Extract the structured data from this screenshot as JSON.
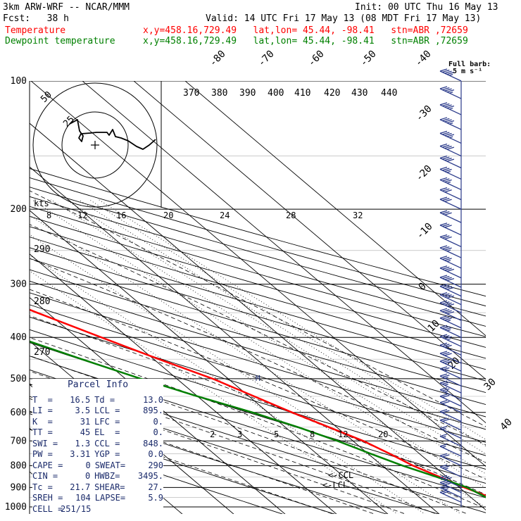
{
  "header": {
    "model": "3km ARW-WRF -- NCAR/MMM",
    "init": "Init: 00 UTC Thu 16 May 13",
    "fcst": "Fcst:   38 h",
    "valid": "Valid: 14 UTC Fri 17 May 13 (08 MDT Fri 17 May 13)",
    "temp_label": "Temperature",
    "temp_loc": "x,y=458.16,729.49   lat,lon= 45.44, -98.41   stn=ABR ,72659",
    "dew_label": "Dewpoint temperature",
    "dew_loc": "x,y=458.16,729.49   lat,lon= 45.44, -98.41   stn=ABR ,72659",
    "temp_color": "#ff0000",
    "dew_color": "#008000"
  },
  "barb_legend": {
    "line1": "Full barb:",
    "line2": "5 m s⁻¹"
  },
  "parcel": {
    "title": "Parcel Info",
    "rows": [
      [
        "T  =",
        "16.5",
        "Td =",
        "13.0"
      ],
      [
        "LI =",
        "3.5",
        "LCL =",
        "895."
      ],
      [
        "K  =",
        "31",
        "LFC =",
        "0."
      ],
      [
        "TT =",
        "45",
        "EL  =",
        "0."
      ],
      [
        "SWI =",
        "1.3",
        "CCL =",
        "848."
      ],
      [
        "PW =",
        "3.31",
        "YGP =",
        "0.0"
      ],
      [
        "CAPE =",
        "0",
        "SWEAT=",
        "290"
      ],
      [
        "CIN =",
        "0",
        "HWBZ=",
        "3495."
      ],
      [
        "Tc =",
        "21.7",
        "SHEAR=",
        "27."
      ],
      [
        "SREH =",
        "104",
        "LAPSE=",
        "5.9"
      ],
      [
        "CELL =",
        "251/15",
        "",
        ""
      ]
    ]
  },
  "hodograph": {
    "kts_label": "kts",
    "ring_labels": [
      "50",
      "25"
    ]
  },
  "annotations": {
    "ccl": "<-CCL",
    "lcl": "<-LCL",
    "m_marker": "M"
  },
  "chart_data": {
    "type": "line",
    "title": "",
    "pressure_levels": [
      100,
      200,
      300,
      400,
      500,
      600,
      700,
      800,
      900,
      1000
    ],
    "isotherm_labels": [
      "-80",
      "-70",
      "-60",
      "-50",
      "-40",
      "-30",
      "-20",
      "-10",
      "0",
      "10",
      "20",
      "30",
      "40"
    ],
    "theta_labels": [
      "370",
      "380",
      "390",
      "400",
      "410",
      "420",
      "430",
      "440"
    ],
    "theta_e_labels": [
      "290",
      "280",
      "270"
    ],
    "mixing_ratio_labels_upper": [
      "8",
      "12",
      "16",
      "20",
      "24",
      "28",
      "32"
    ],
    "mixing_ratio_labels_lower": [
      "2",
      "3",
      "5",
      "8",
      "12",
      "20"
    ],
    "series": [
      {
        "name": "Temperature",
        "pressure": [
          995,
          975,
          950,
          900,
          850,
          800,
          750,
          700,
          650,
          600,
          550,
          500,
          450,
          400,
          350,
          300,
          250,
          200,
          180,
          150,
          130,
          110,
          100
        ],
        "temperature": [
          16.5,
          14.6,
          13.8,
          11.0,
          8.6,
          6.0,
          4.2,
          2.0,
          -1.5,
          -5.3,
          -9.0,
          -13.0,
          -19.0,
          -25.2,
          -32.0,
          -39.5,
          -47.5,
          -55.5,
          -59.0,
          -60.0,
          -61.0,
          -60.0,
          -59.0
        ]
      },
      {
        "name": "Dewpoint temperature",
        "pressure": [
          975,
          950,
          900,
          850,
          800,
          750,
          700,
          650,
          600,
          550,
          500,
          450,
          400,
          350,
          300,
          250,
          200,
          180,
          150,
          130,
          110,
          100
        ],
        "temperature": [
          12.3,
          13.0,
          11.5,
          8.0,
          4.0,
          0.5,
          -3.0,
          -7.5,
          -13.0,
          -20.0,
          -27.0,
          -34.0,
          -41.5,
          -47.5,
          -54.5,
          -62.0,
          -71.0,
          -73.0,
          -71.0,
          -71.0,
          -72.0,
          -72.5
        ]
      }
    ],
    "wind_barbs": [
      {
        "p": 100,
        "kt": 45
      },
      {
        "p": 110,
        "kt": 45
      },
      {
        "p": 120,
        "kt": 45
      },
      {
        "p": 130,
        "kt": 45
      },
      {
        "p": 140,
        "kt": 45
      },
      {
        "p": 150,
        "kt": 40
      },
      {
        "p": 160,
        "kt": 40
      },
      {
        "p": 170,
        "kt": 35
      },
      {
        "p": 180,
        "kt": 35
      },
      {
        "p": 190,
        "kt": 30
      },
      {
        "p": 200,
        "kt": 30
      },
      {
        "p": 215,
        "kt": 30
      },
      {
        "p": 230,
        "kt": 30
      },
      {
        "p": 245,
        "kt": 30
      },
      {
        "p": 260,
        "kt": 35
      },
      {
        "p": 275,
        "kt": 35
      },
      {
        "p": 290,
        "kt": 40
      },
      {
        "p": 305,
        "kt": 40
      },
      {
        "p": 320,
        "kt": 40
      },
      {
        "p": 335,
        "kt": 40
      },
      {
        "p": 350,
        "kt": 40
      },
      {
        "p": 365,
        "kt": 40
      },
      {
        "p": 380,
        "kt": 35
      },
      {
        "p": 400,
        "kt": 35
      },
      {
        "p": 420,
        "kt": 35
      },
      {
        "p": 440,
        "kt": 30
      },
      {
        "p": 460,
        "kt": 30
      },
      {
        "p": 480,
        "kt": 30
      },
      {
        "p": 500,
        "kt": 25
      },
      {
        "p": 520,
        "kt": 25
      },
      {
        "p": 540,
        "kt": 25
      },
      {
        "p": 560,
        "kt": 25
      },
      {
        "p": 580,
        "kt": 20
      },
      {
        "p": 600,
        "kt": 20
      },
      {
        "p": 630,
        "kt": 20
      },
      {
        "p": 660,
        "kt": 20
      },
      {
        "p": 690,
        "kt": 15
      },
      {
        "p": 720,
        "kt": 15
      },
      {
        "p": 760,
        "kt": 15
      },
      {
        "p": 800,
        "kt": 20
      },
      {
        "p": 850,
        "kt": 25
      },
      {
        "p": 900,
        "kt": 30
      },
      {
        "p": 925,
        "kt": 30
      },
      {
        "p": 950,
        "kt": 25
      },
      {
        "p": 975,
        "kt": 20
      }
    ]
  }
}
